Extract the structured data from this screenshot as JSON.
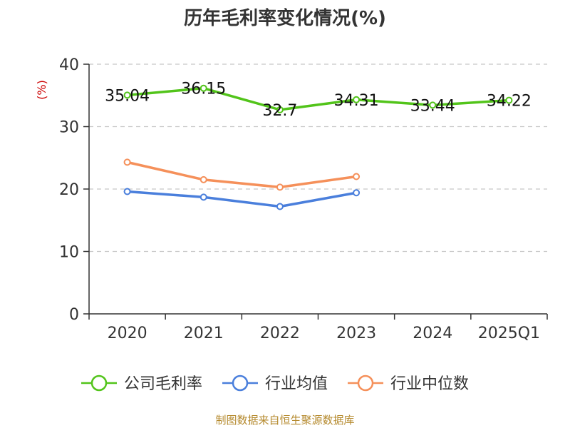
{
  "chart_data": {
    "type": "line",
    "title": "历年毛利率变化情况(%)",
    "ylabel": "(%)",
    "categories": [
      "2020",
      "2021",
      "2022",
      "2023",
      "2024",
      "2025Q1"
    ],
    "ylim": [
      0,
      40
    ],
    "yticks": [
      0,
      10,
      20,
      30,
      40
    ],
    "grid": true,
    "legend_position": "bottom",
    "series": [
      {
        "name": "公司毛利率",
        "color": "#52c41a",
        "values": [
          35.04,
          36.15,
          32.7,
          34.31,
          33.44,
          34.22
        ],
        "labels": [
          "35.04",
          "36.15",
          "32.7",
          "34.31",
          "33.44",
          "34.22"
        ]
      },
      {
        "name": "行业均值",
        "color": "#4a7fdc",
        "values": [
          19.6,
          18.7,
          17.2,
          19.4,
          null,
          null
        ]
      },
      {
        "name": "行业中位数",
        "color": "#f5905a",
        "values": [
          24.3,
          21.5,
          20.3,
          22.0,
          null,
          null
        ]
      }
    ],
    "source": "制图数据来自恒生聚源数据库"
  }
}
